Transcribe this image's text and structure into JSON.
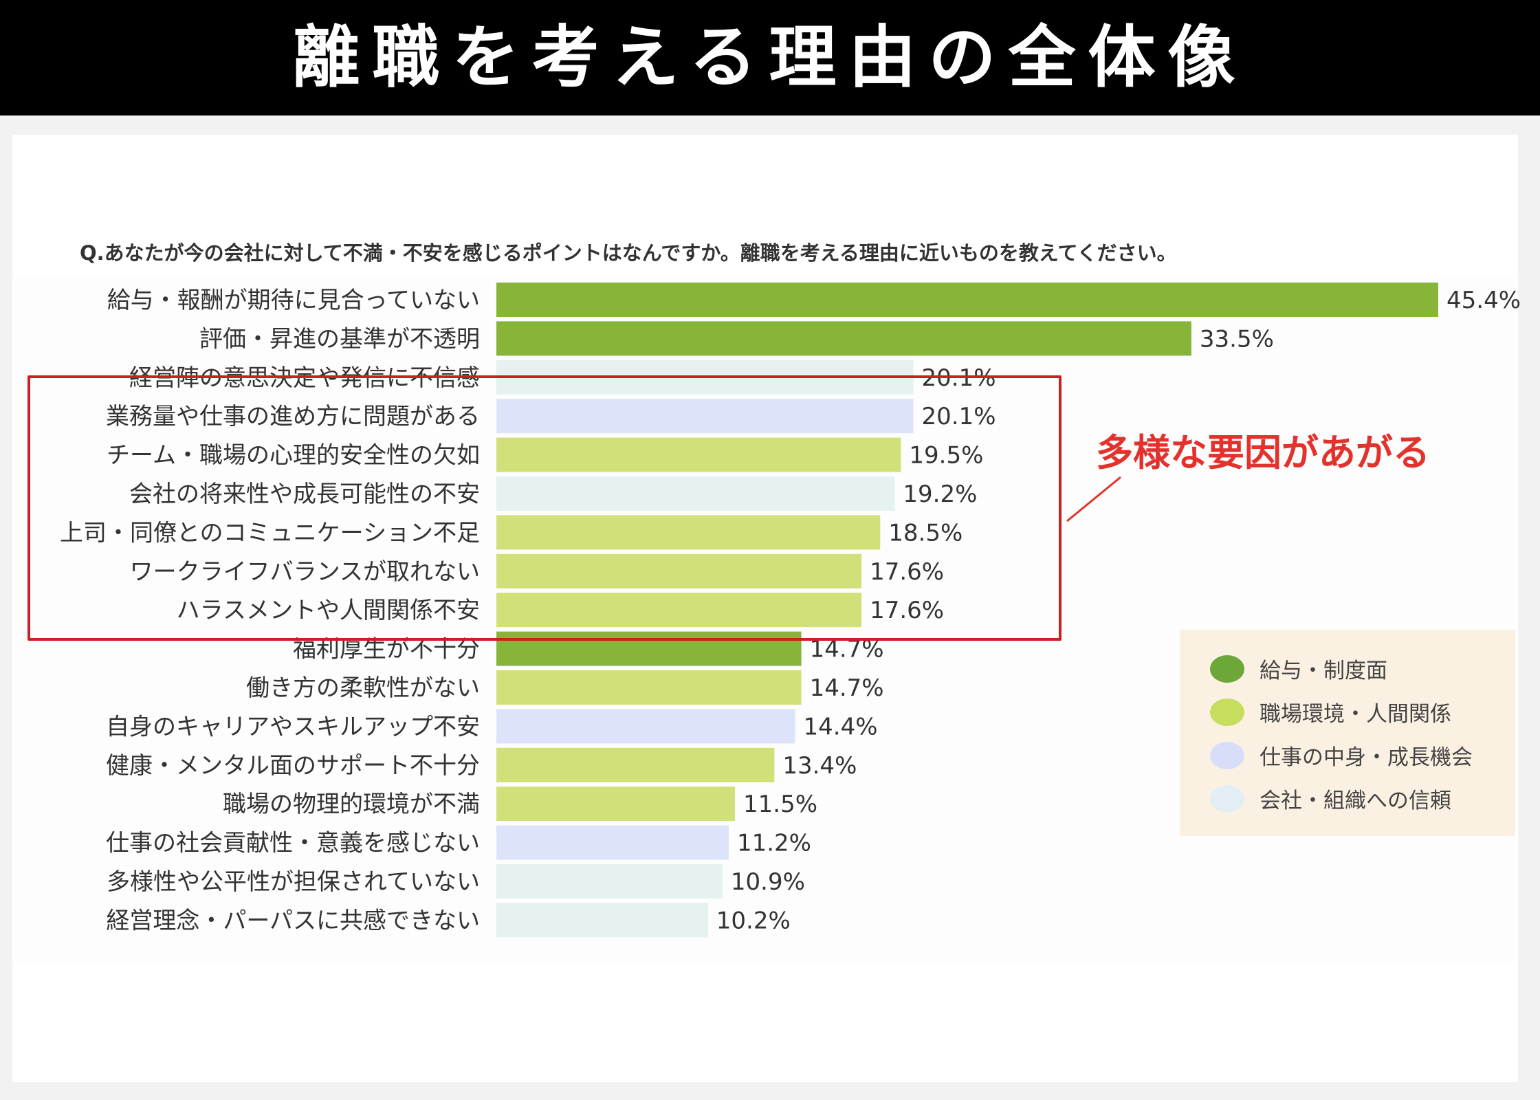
{
  "header": {
    "title": "離職を考える理由の全体像"
  },
  "question": "Q.あなたが今の会社に対して不満・不安を感じるポイントはなんですか。離職を考える理由に近いものを教えてください。",
  "callout": {
    "text": "多様な要因があがる"
  },
  "legend": {
    "items": [
      {
        "label": "給与・制度面",
        "color": "#86b53a"
      },
      {
        "label": "職場環境・人間関係",
        "color": "#d1e079"
      },
      {
        "label": "仕事の中身・成長機会",
        "color": "#dde3fa"
      },
      {
        "label": "会社・組織への信頼",
        "color": "#e5f2ef"
      }
    ]
  },
  "chart_data": {
    "type": "bar",
    "orientation": "horizontal",
    "unit": "%",
    "xlim": [
      0,
      45.4
    ],
    "grid": false,
    "legend_position": "bottom-right",
    "categories": [
      "給与・報酬が期待に見合っていない",
      "評価・昇進の基準が不透明",
      "経営陣の意思決定や発信に不信感",
      "業務量や仕事の進め方に問題がある",
      "チーム・職場の心理的安全性の欠如",
      "会社の将来性や成長可能性の不安",
      "上司・同僚とのコミュニケーション不足",
      "ワークライフバランスが取れない",
      "ハラスメントや人間関係不安",
      "福利厚生が不十分",
      "働き方の柔軟性がない",
      "自身のキャリアやスキルアップ不安",
      "健康・メンタル面のサポート不十分",
      "職場の物理的環境が不満",
      "仕事の社会貢献性・意義を感じない",
      "多様性や公平性が担保されていない",
      "経営理念・パーパスに共感できない"
    ],
    "values": [
      45.4,
      33.5,
      20.1,
      20.1,
      19.5,
      19.2,
      18.5,
      17.6,
      17.6,
      14.7,
      14.7,
      14.4,
      13.4,
      11.5,
      11.2,
      10.9,
      10.2
    ],
    "value_labels": [
      "45.4%",
      "33.5%",
      "20.1%",
      "20.1%",
      "19.5%",
      "19.2%",
      "18.5%",
      "17.6%",
      "17.6%",
      "14.7%",
      "14.7%",
      "14.4%",
      "13.4%",
      "11.5%",
      "11.2%",
      "10.9%",
      "10.2%"
    ],
    "groups": [
      0,
      0,
      3,
      2,
      1,
      3,
      1,
      1,
      1,
      0,
      1,
      2,
      1,
      1,
      2,
      3,
      3
    ],
    "highlight_range": [
      2,
      8
    ]
  }
}
